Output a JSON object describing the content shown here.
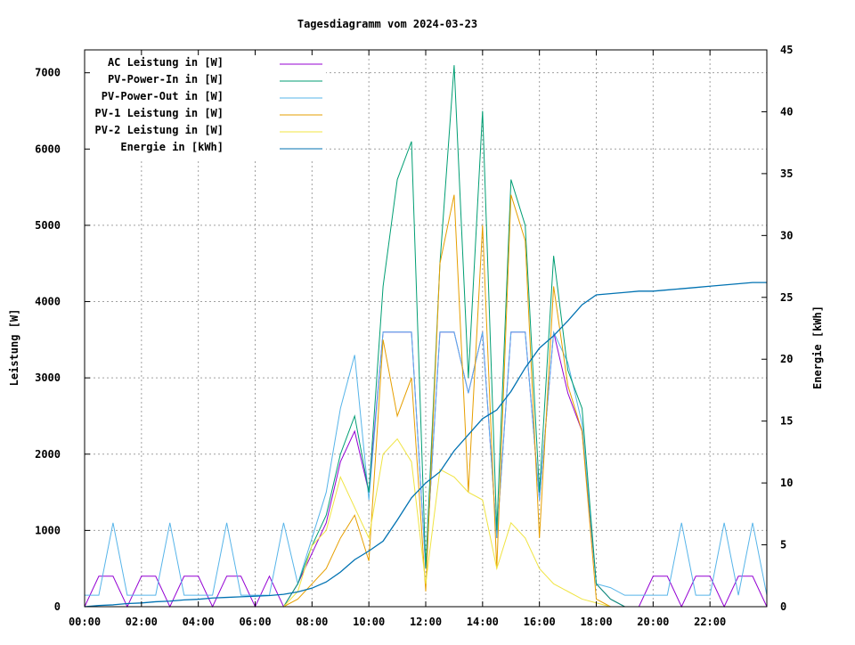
{
  "chart_data": {
    "type": "line",
    "title": "Tagesdiagramm vom 2024-03-23",
    "xlabel": "",
    "ylabel": "Leistung [W]",
    "y2label": "Energie [kWh]",
    "xlim": [
      0,
      24
    ],
    "ylim": [
      0,
      7300
    ],
    "y2lim": [
      0,
      45
    ],
    "grid": true,
    "legend_position": "top-left",
    "x_tick_labels": [
      "00:00",
      "02:00",
      "04:00",
      "06:00",
      "08:00",
      "10:00",
      "12:00",
      "14:00",
      "16:00",
      "18:00",
      "20:00",
      "22:00"
    ],
    "y_tick_labels": [
      "0",
      "1000",
      "2000",
      "3000",
      "4000",
      "5000",
      "6000",
      "7000"
    ],
    "y2_tick_labels": [
      "0",
      "5",
      "10",
      "15",
      "20",
      "25",
      "30",
      "35",
      "40",
      "45"
    ],
    "x": [
      0,
      0.5,
      1,
      1.5,
      2,
      2.5,
      3,
      3.5,
      4,
      4.5,
      5,
      5.5,
      6,
      6.5,
      7,
      7.5,
      8,
      8.5,
      9,
      9.5,
      10,
      10.5,
      11,
      11.5,
      12,
      12.5,
      13,
      13.5,
      14,
      14.5,
      15,
      15.5,
      16,
      16.5,
      17,
      17.5,
      18,
      18.5,
      19,
      19.5,
      20,
      20.5,
      21,
      21.5,
      22,
      22.5,
      23,
      23.5,
      24
    ],
    "series": [
      {
        "name": "AC Leistung in [W]",
        "axis": "y",
        "color": "#9400d3",
        "values": [
          0,
          400,
          400,
          0,
          400,
          400,
          0,
          400,
          400,
          0,
          400,
          400,
          0,
          400,
          0,
          300,
          700,
          1100,
          1900,
          2300,
          1500,
          3600,
          3600,
          3600,
          500,
          3600,
          3600,
          2800,
          3600,
          900,
          3600,
          3600,
          1400,
          3600,
          2800,
          2300,
          300,
          100,
          0,
          0,
          400,
          400,
          0,
          400,
          400,
          0,
          400,
          400,
          0
        ]
      },
      {
        "name": "PV-Power-In in [W]",
        "axis": "y",
        "color": "#009e73",
        "values": [
          0,
          0,
          0,
          0,
          0,
          0,
          0,
          0,
          0,
          0,
          0,
          0,
          0,
          0,
          0,
          300,
          800,
          1200,
          2000,
          2500,
          1500,
          4200,
          5600,
          6100,
          500,
          4500,
          7100,
          3000,
          6500,
          1000,
          5600,
          5000,
          1500,
          4600,
          3100,
          2600,
          300,
          100,
          0,
          0,
          0,
          0,
          0,
          0,
          0,
          0,
          0,
          0,
          0
        ]
      },
      {
        "name": "PV-Power-Out in [W]",
        "axis": "y",
        "color": "#56b4e9",
        "values": [
          150,
          150,
          1100,
          150,
          150,
          150,
          1100,
          150,
          150,
          150,
          1100,
          150,
          150,
          150,
          1100,
          300,
          900,
          1500,
          2600,
          3300,
          1400,
          3600,
          3600,
          3600,
          500,
          3600,
          3600,
          2800,
          3600,
          900,
          3600,
          3600,
          1400,
          3600,
          3200,
          2400,
          300,
          250,
          150,
          150,
          150,
          150,
          1100,
          150,
          150,
          1100,
          150,
          1100,
          150
        ]
      },
      {
        "name": "PV-1 Leistung in [W]",
        "axis": "y",
        "color": "#e69f00",
        "values": [
          0,
          0,
          0,
          0,
          0,
          0,
          0,
          0,
          0,
          0,
          0,
          0,
          0,
          0,
          0,
          100,
          300,
          500,
          900,
          1200,
          600,
          3500,
          2500,
          3000,
          200,
          4500,
          5400,
          1500,
          5000,
          500,
          5400,
          4800,
          900,
          4200,
          2900,
          2300,
          100,
          0,
          0,
          0,
          0,
          0,
          0,
          0,
          0,
          0,
          0,
          0,
          0
        ]
      },
      {
        "name": "PV-2 Leistung in [W]",
        "axis": "y",
        "color": "#f0e442",
        "values": [
          0,
          0,
          0,
          0,
          0,
          0,
          0,
          0,
          0,
          0,
          0,
          0,
          0,
          0,
          0,
          200,
          800,
          1000,
          1700,
          1300,
          900,
          2000,
          2200,
          1900,
          300,
          1800,
          1700,
          1500,
          1400,
          500,
          1100,
          900,
          500,
          300,
          200,
          100,
          50,
          0,
          0,
          0,
          0,
          0,
          0,
          0,
          0,
          0,
          0,
          0,
          0
        ]
      },
      {
        "name": "Energie in [kWh]",
        "axis": "y2",
        "color": "#0072b2",
        "values": [
          0,
          0.1,
          0.15,
          0.25,
          0.3,
          0.4,
          0.45,
          0.55,
          0.6,
          0.7,
          0.75,
          0.8,
          0.85,
          0.9,
          1.0,
          1.2,
          1.5,
          2.0,
          2.8,
          3.8,
          4.5,
          5.3,
          7.0,
          8.8,
          10.0,
          10.9,
          12.6,
          13.9,
          15.2,
          15.9,
          17.4,
          19.3,
          20.9,
          21.9,
          23.1,
          24.4,
          25.2,
          25.3,
          25.4,
          25.5,
          25.5,
          25.6,
          25.7,
          25.8,
          25.9,
          26.0,
          26.1,
          26.2,
          26.2
        ]
      }
    ]
  }
}
